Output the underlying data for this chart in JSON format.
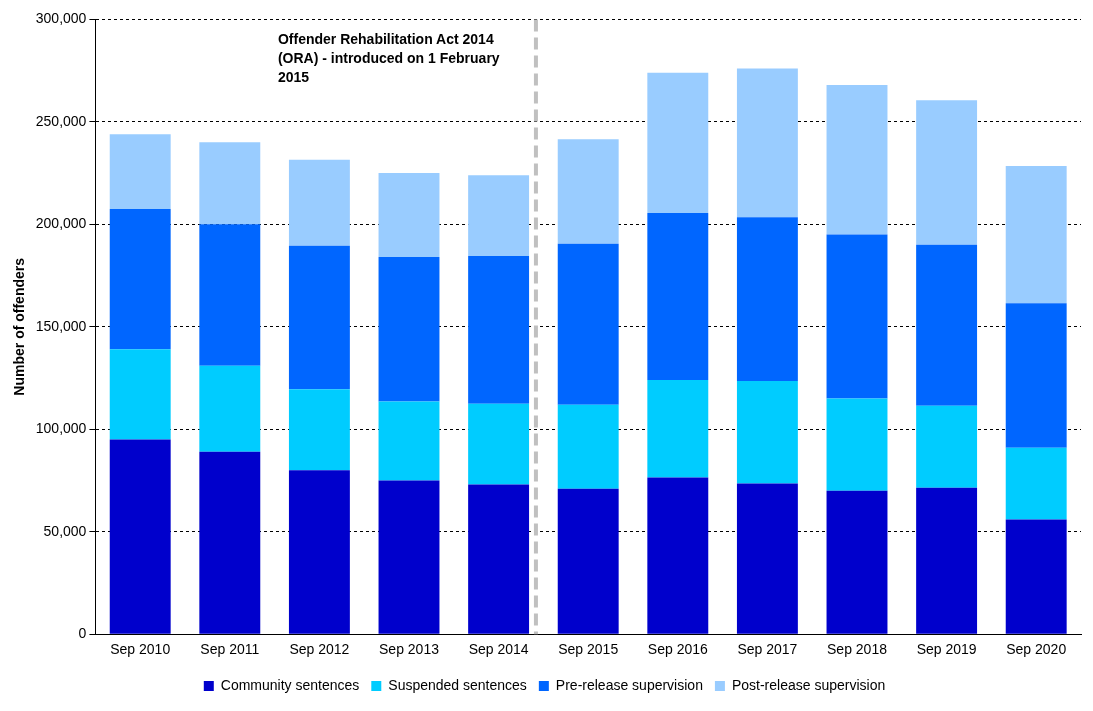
{
  "chart_data": {
    "type": "bar",
    "stacked": true,
    "ylabel": "Number of offenders",
    "x": [
      "2010-09",
      "2011-09",
      "2012-09",
      "2013-09",
      "2014-09",
      "2015-09",
      "2016-09",
      "2017-09",
      "2018-09",
      "2019-09",
      "2020-09"
    ],
    "series": [
      {
        "name": "Community sentences",
        "color": "#0000cc",
        "values": [
          95000,
          89000,
          80000,
          75000,
          73000,
          71000,
          76500,
          73500,
          70000,
          71500,
          56000
        ]
      },
      {
        "name": "Suspended sentences",
        "color": "#00ccff",
        "values": [
          44000,
          42000,
          39500,
          38500,
          39500,
          41000,
          47500,
          50000,
          45000,
          40000,
          35000
        ]
      },
      {
        "name": "Pre-release supervision",
        "color": "#0066ff",
        "values": [
          68500,
          69000,
          70000,
          70500,
          72000,
          78500,
          81500,
          80000,
          80000,
          78500,
          70500
        ]
      },
      {
        "name": "Post-release supervision",
        "color": "#99ccff",
        "values": [
          36500,
          40000,
          42000,
          41000,
          39500,
          51000,
          68500,
          72500,
          73000,
          70500,
          67000
        ]
      }
    ],
    "xlim": [
      "2010-03",
      "2021-03"
    ],
    "xticks": [
      {
        "value": "2010-09",
        "label": "Sep 2010"
      },
      {
        "value": "2011-09",
        "label": "Sep 2011"
      },
      {
        "value": "2012-09",
        "label": "Sep 2012"
      },
      {
        "value": "2013-09",
        "label": "Sep 2013"
      },
      {
        "value": "2014-09",
        "label": "Sep 2014"
      },
      {
        "value": "2015-09",
        "label": "Sep 2015"
      },
      {
        "value": "2016-09",
        "label": "Sep 2016"
      },
      {
        "value": "2017-09",
        "label": "Sep 2017"
      },
      {
        "value": "2018-09",
        "label": "Sep 2018"
      },
      {
        "value": "2019-09",
        "label": "Sep 2019"
      },
      {
        "value": "2020-09",
        "label": "Sep 2020"
      }
    ],
    "ylim": [
      0,
      300000
    ],
    "yticks": [
      0,
      {
        "value": 50000,
        "label": "50,000"
      },
      {
        "value": 100000,
        "label": "100,000"
      },
      {
        "value": 150000,
        "label": "150,000"
      },
      {
        "value": 200000,
        "label": "200,000"
      },
      {
        "value": 250000,
        "label": "250,000"
      },
      {
        "value": 300000,
        "label": "300,000"
      }
    ],
    "grid": "y",
    "legend": "bottom",
    "ref_lines": [
      {
        "axis": "x",
        "value": "2015-02-01",
        "label": "Offender Rehabilitation Act 2014 (ORA) - introduced on 1 February 2015",
        "color": "#c0c0c0",
        "line_style": "dashed"
      }
    ]
  }
}
